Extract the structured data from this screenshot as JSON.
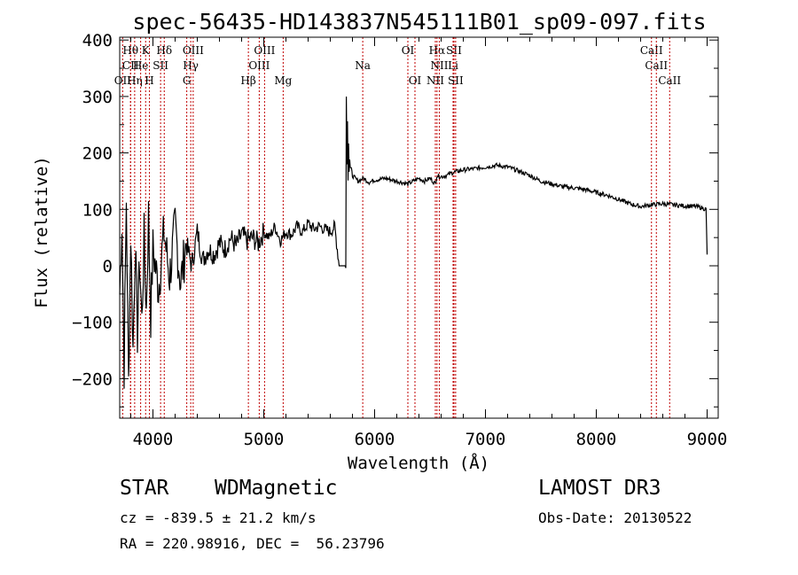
{
  "chart_data": {
    "type": "line",
    "title": "spec-56435-HD143837N545111B01_sp09-097.fits",
    "xlabel": "Wavelength (Å)",
    "ylabel": "Flux (relative)",
    "xlim": [
      3700,
      9100
    ],
    "ylim": [
      -270,
      405
    ],
    "xticks": [
      4000,
      5000,
      6000,
      7000,
      8000,
      9000
    ],
    "yticks": [
      -200,
      -100,
      0,
      100,
      200,
      300,
      400
    ],
    "grid": false,
    "line_color": "#000000",
    "marker_color": "#c00000",
    "series": [
      {
        "x": [
          3700,
          3720,
          3740,
          3760,
          3780,
          3800,
          3820,
          3840,
          3860,
          3880,
          3900,
          3920,
          3940,
          3960,
          3980,
          4000,
          4050,
          4100,
          4150,
          4200,
          4250,
          4300,
          4350,
          4400,
          4450,
          4500,
          4550,
          4600,
          4650,
          4700,
          4750,
          4800,
          4850,
          4900,
          4950,
          5000,
          5050,
          5100,
          5150,
          5200,
          5250,
          5300,
          5350,
          5400,
          5450,
          5500,
          5550,
          5600,
          5640,
          5680,
          5700,
          5720,
          5740,
          5745,
          5750,
          5755,
          5760,
          5765,
          5770,
          5775,
          5780,
          5790,
          5800,
          5850,
          5900,
          5950,
          6000,
          6100,
          6200,
          6300,
          6400,
          6450,
          6500,
          6550,
          6560,
          6600,
          6650,
          6700,
          6800,
          6900,
          7000,
          7100,
          7200,
          7300,
          7400,
          7500,
          7600,
          7700,
          7800,
          7900,
          8000,
          8100,
          8200,
          8300,
          8400,
          8500,
          8600,
          8700,
          8800,
          8900,
          8950,
          8990,
          9000
        ],
        "y": [
          -50,
          80,
          -180,
          120,
          -210,
          60,
          -150,
          40,
          -120,
          10,
          -100,
          50,
          -80,
          90,
          -90,
          30,
          -40,
          60,
          -20,
          70,
          -30,
          40,
          0,
          60,
          10,
          30,
          20,
          40,
          30,
          50,
          35,
          55,
          45,
          50,
          40,
          60,
          50,
          70,
          45,
          60,
          55,
          70,
          60,
          75,
          65,
          70,
          65,
          60,
          70,
          0,
          0,
          0,
          0,
          300,
          180,
          260,
          150,
          220,
          170,
          190,
          175,
          170,
          160,
          150,
          155,
          148,
          152,
          155,
          150,
          145,
          155,
          150,
          155,
          145,
          160,
          158,
          160,
          165,
          170,
          172,
          175,
          178,
          175,
          168,
          160,
          150,
          145,
          140,
          138,
          135,
          130,
          125,
          118,
          110,
          105,
          108,
          110,
          108,
          106,
          105,
          103,
          100,
          20
        ]
      }
    ],
    "lines": [
      {
        "label": "Hθ",
        "x": 3798,
        "row": 0
      },
      {
        "label": "CII",
        "x": 3798,
        "row": 1
      },
      {
        "label": "OII",
        "x": 3727,
        "row": 2
      },
      {
        "label": "Hη",
        "x": 3835,
        "row": 2
      },
      {
        "label": "He",
        "x": 3889,
        "row": 1
      },
      {
        "label": "K",
        "x": 3934,
        "row": 0
      },
      {
        "label": "H",
        "x": 3968,
        "row": 2
      },
      {
        "label": "SII",
        "x": 4069,
        "row": 1
      },
      {
        "label": "Hδ",
        "x": 4102,
        "row": 0
      },
      {
        "label": "OIII",
        "x": 4363,
        "row": 0
      },
      {
        "label": "Hγ",
        "x": 4341,
        "row": 1
      },
      {
        "label": "G",
        "x": 4305,
        "row": 2
      },
      {
        "label": "OIII",
        "x": 5007,
        "row": 0
      },
      {
        "label": "OIII",
        "x": 4959,
        "row": 1
      },
      {
        "label": "Hβ",
        "x": 4861,
        "row": 2
      },
      {
        "label": "Mg",
        "x": 5175,
        "row": 2
      },
      {
        "label": "Na",
        "x": 5893,
        "row": 1
      },
      {
        "label": "OI",
        "x": 6300,
        "row": 0
      },
      {
        "label": "OI",
        "x": 6364,
        "row": 2
      },
      {
        "label": "Hα",
        "x": 6563,
        "row": 0
      },
      {
        "label": "SII",
        "x": 6716,
        "row": 0
      },
      {
        "label": "NII",
        "x": 6584,
        "row": 1
      },
      {
        "label": "Li",
        "x": 6708,
        "row": 1
      },
      {
        "label": "NII",
        "x": 6548,
        "row": 2
      },
      {
        "label": "SII",
        "x": 6731,
        "row": 2
      },
      {
        "label": "CaII",
        "x": 8498,
        "row": 0
      },
      {
        "label": "CaII",
        "x": 8542,
        "row": 1
      },
      {
        "label": "CaII",
        "x": 8662,
        "row": 2
      }
    ]
  },
  "info": {
    "class": "STAR",
    "subclass": "WDMagnetic",
    "survey": "LAMOST DR3",
    "cz": "cz = -839.5 ± 21.2 km/s",
    "obs_date": "Obs-Date: 20130522",
    "radec": "RA = 220.98916, DEC =  56.23796"
  }
}
